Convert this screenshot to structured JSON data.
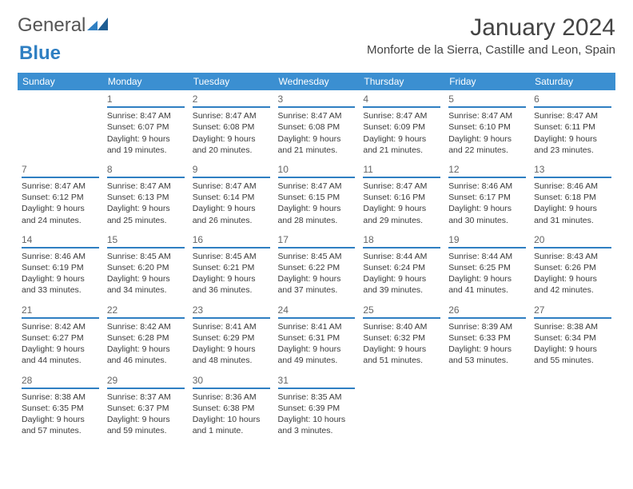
{
  "brand": {
    "word1": "General",
    "word2": "Blue"
  },
  "title": "January 2024",
  "location": "Monforte de la Sierra, Castille and Leon, Spain",
  "day_headers": [
    "Sunday",
    "Monday",
    "Tuesday",
    "Wednesday",
    "Thursday",
    "Friday",
    "Saturday"
  ],
  "colors": {
    "header_bg": "#3b8fd1",
    "header_text": "#ffffff",
    "accent": "#2f7fc2",
    "text": "#3a3a3a",
    "background": "#ffffff"
  },
  "typography": {
    "title_fontsize": 30,
    "location_fontsize": 15,
    "header_fontsize": 12,
    "cell_fontsize": 10.5
  },
  "layout": {
    "start_blank_cells": 1,
    "columns": 7,
    "rows": 5
  },
  "days": [
    {
      "n": 1,
      "sunrise": "8:47 AM",
      "sunset": "6:07 PM",
      "daylight": "9 hours and 19 minutes."
    },
    {
      "n": 2,
      "sunrise": "8:47 AM",
      "sunset": "6:08 PM",
      "daylight": "9 hours and 20 minutes."
    },
    {
      "n": 3,
      "sunrise": "8:47 AM",
      "sunset": "6:08 PM",
      "daylight": "9 hours and 21 minutes."
    },
    {
      "n": 4,
      "sunrise": "8:47 AM",
      "sunset": "6:09 PM",
      "daylight": "9 hours and 21 minutes."
    },
    {
      "n": 5,
      "sunrise": "8:47 AM",
      "sunset": "6:10 PM",
      "daylight": "9 hours and 22 minutes."
    },
    {
      "n": 6,
      "sunrise": "8:47 AM",
      "sunset": "6:11 PM",
      "daylight": "9 hours and 23 minutes."
    },
    {
      "n": 7,
      "sunrise": "8:47 AM",
      "sunset": "6:12 PM",
      "daylight": "9 hours and 24 minutes."
    },
    {
      "n": 8,
      "sunrise": "8:47 AM",
      "sunset": "6:13 PM",
      "daylight": "9 hours and 25 minutes."
    },
    {
      "n": 9,
      "sunrise": "8:47 AM",
      "sunset": "6:14 PM",
      "daylight": "9 hours and 26 minutes."
    },
    {
      "n": 10,
      "sunrise": "8:47 AM",
      "sunset": "6:15 PM",
      "daylight": "9 hours and 28 minutes."
    },
    {
      "n": 11,
      "sunrise": "8:47 AM",
      "sunset": "6:16 PM",
      "daylight": "9 hours and 29 minutes."
    },
    {
      "n": 12,
      "sunrise": "8:46 AM",
      "sunset": "6:17 PM",
      "daylight": "9 hours and 30 minutes."
    },
    {
      "n": 13,
      "sunrise": "8:46 AM",
      "sunset": "6:18 PM",
      "daylight": "9 hours and 31 minutes."
    },
    {
      "n": 14,
      "sunrise": "8:46 AM",
      "sunset": "6:19 PM",
      "daylight": "9 hours and 33 minutes."
    },
    {
      "n": 15,
      "sunrise": "8:45 AM",
      "sunset": "6:20 PM",
      "daylight": "9 hours and 34 minutes."
    },
    {
      "n": 16,
      "sunrise": "8:45 AM",
      "sunset": "6:21 PM",
      "daylight": "9 hours and 36 minutes."
    },
    {
      "n": 17,
      "sunrise": "8:45 AM",
      "sunset": "6:22 PM",
      "daylight": "9 hours and 37 minutes."
    },
    {
      "n": 18,
      "sunrise": "8:44 AM",
      "sunset": "6:24 PM",
      "daylight": "9 hours and 39 minutes."
    },
    {
      "n": 19,
      "sunrise": "8:44 AM",
      "sunset": "6:25 PM",
      "daylight": "9 hours and 41 minutes."
    },
    {
      "n": 20,
      "sunrise": "8:43 AM",
      "sunset": "6:26 PM",
      "daylight": "9 hours and 42 minutes."
    },
    {
      "n": 21,
      "sunrise": "8:42 AM",
      "sunset": "6:27 PM",
      "daylight": "9 hours and 44 minutes."
    },
    {
      "n": 22,
      "sunrise": "8:42 AM",
      "sunset": "6:28 PM",
      "daylight": "9 hours and 46 minutes."
    },
    {
      "n": 23,
      "sunrise": "8:41 AM",
      "sunset": "6:29 PM",
      "daylight": "9 hours and 48 minutes."
    },
    {
      "n": 24,
      "sunrise": "8:41 AM",
      "sunset": "6:31 PM",
      "daylight": "9 hours and 49 minutes."
    },
    {
      "n": 25,
      "sunrise": "8:40 AM",
      "sunset": "6:32 PM",
      "daylight": "9 hours and 51 minutes."
    },
    {
      "n": 26,
      "sunrise": "8:39 AM",
      "sunset": "6:33 PM",
      "daylight": "9 hours and 53 minutes."
    },
    {
      "n": 27,
      "sunrise": "8:38 AM",
      "sunset": "6:34 PM",
      "daylight": "9 hours and 55 minutes."
    },
    {
      "n": 28,
      "sunrise": "8:38 AM",
      "sunset": "6:35 PM",
      "daylight": "9 hours and 57 minutes."
    },
    {
      "n": 29,
      "sunrise": "8:37 AM",
      "sunset": "6:37 PM",
      "daylight": "9 hours and 59 minutes."
    },
    {
      "n": 30,
      "sunrise": "8:36 AM",
      "sunset": "6:38 PM",
      "daylight": "10 hours and 1 minute."
    },
    {
      "n": 31,
      "sunrise": "8:35 AM",
      "sunset": "6:39 PM",
      "daylight": "10 hours and 3 minutes."
    }
  ],
  "labels": {
    "sunrise": "Sunrise:",
    "sunset": "Sunset:",
    "daylight": "Daylight:"
  }
}
